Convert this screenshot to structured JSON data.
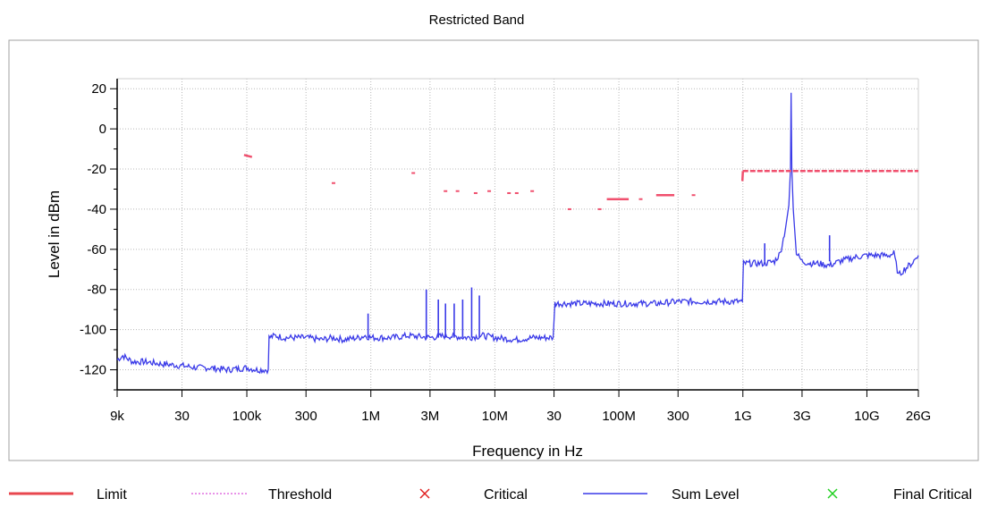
{
  "chart_data": {
    "type": "line",
    "title": "Restricted Band",
    "xlabel": "Frequency in Hz",
    "ylabel": "Level in dBm",
    "x_scale": "log",
    "xlim_hz": [
      9000,
      26000000000
    ],
    "ylim": [
      -130,
      25
    ],
    "y_ticks": [
      20,
      0,
      -20,
      -40,
      -60,
      -80,
      -100,
      -120
    ],
    "x_ticks": [
      {
        "hz": 9000,
        "label": "9k"
      },
      {
        "hz": 30000,
        "label": "30"
      },
      {
        "hz": 100000,
        "label": "100k"
      },
      {
        "hz": 300000,
        "label": "300"
      },
      {
        "hz": 1000000,
        "label": "1M"
      },
      {
        "hz": 3000000,
        "label": "3M"
      },
      {
        "hz": 10000000,
        "label": "10M"
      },
      {
        "hz": 30000000,
        "label": "30"
      },
      {
        "hz": 100000000,
        "label": "100M"
      },
      {
        "hz": 300000000,
        "label": "300"
      },
      {
        "hz": 1000000000,
        "label": "1G"
      },
      {
        "hz": 3000000000,
        "label": "3G"
      },
      {
        "hz": 10000000000,
        "label": "10G"
      },
      {
        "hz": 26000000000,
        "label": "26G"
      }
    ],
    "grid": true,
    "legend_position": "bottom",
    "legend": [
      {
        "name": "Limit",
        "style": "line",
        "color": "#e8474f"
      },
      {
        "name": "Threshold",
        "style": "dotted",
        "color": "#e070e0"
      },
      {
        "name": "Critical",
        "style": "x-marker",
        "color": "#e02020"
      },
      {
        "name": "Sum Level",
        "style": "line",
        "color": "#3a3ae8"
      },
      {
        "name": "Final Critical",
        "style": "x-marker",
        "color": "#20d020"
      }
    ],
    "series": [
      {
        "name": "Sum Level",
        "color": "#3a3ae8",
        "x": [
          9000,
          10000,
          12000,
          15000,
          20000,
          30000,
          40000,
          50000,
          70000,
          100000,
          120000,
          149000,
          151000,
          170000,
          200000,
          300000,
          400000,
          500000,
          600000,
          800000,
          900000,
          1000000,
          1500000,
          2000000,
          3000000,
          4000000,
          6000000,
          8000000,
          10000000,
          15000000,
          20000000,
          29500000,
          30500000,
          40000000,
          60000000,
          100000000,
          200000000,
          300000000,
          500000000,
          700000000,
          990000000,
          1010000000,
          1200000000,
          1500000000,
          1800000000,
          2000000000,
          2200000000,
          2350000000,
          2420000000,
          2450000000,
          2480000000,
          2550000000,
          2700000000,
          3000000000,
          3500000000,
          4000000000,
          5000000000,
          6000000000,
          8000000000,
          10000000000,
          12000000000,
          15000000000,
          16500000000,
          18000000000,
          20000000000,
          23000000000,
          26000000000
        ],
        "values": [
          -115,
          -113,
          -116,
          -116,
          -117,
          -118,
          -119,
          -119,
          -120,
          -119,
          -120,
          -120,
          -104,
          -103,
          -104,
          -104,
          -105,
          -104,
          -105,
          -104,
          -103,
          -104,
          -104,
          -103,
          -104,
          -103,
          -104,
          -103,
          -104,
          -105,
          -104,
          -104,
          -87,
          -87,
          -87,
          -87,
          -87,
          -86,
          -86,
          -86,
          -86,
          -67,
          -67,
          -67,
          -66,
          -62,
          -50,
          -38,
          -20,
          18,
          -20,
          -40,
          -62,
          -66,
          -67,
          -67,
          -68,
          -66,
          -64,
          -63,
          -63,
          -63,
          -62,
          -73,
          -70,
          -67,
          -63
        ]
      },
      {
        "name": "Sum Level spikes",
        "color": "#3a3ae8",
        "x": [
          950000,
          2800000,
          3500000,
          4000000,
          4700000,
          5500000,
          6500000,
          7500000,
          1500000000,
          5000000000
        ],
        "values": [
          -92,
          -80,
          -85,
          -87,
          -87,
          -85,
          -79,
          -83,
          -57,
          -53
        ]
      },
      {
        "name": "Limit",
        "color": "#f0506e",
        "segments": [
          {
            "x": [
              95000,
              110000
            ],
            "values": [
              -13,
              -14
            ]
          },
          {
            "x": [
              80000000,
              120000000
            ],
            "values": [
              -35,
              -35
            ]
          },
          {
            "x": [
              200000000,
              280000000
            ],
            "values": [
              -33,
              -33
            ]
          },
          {
            "x": [
              990000000,
              1000000000
            ],
            "values": [
              -26,
              -21
            ]
          },
          {
            "x": [
              1000000000,
              26000000000
            ],
            "values": [
              -21,
              -21
            ]
          }
        ],
        "points": [
          {
            "x": 500000,
            "value": -27
          },
          {
            "x": 2200000,
            "value": -22
          },
          {
            "x": 4000000,
            "value": -31
          },
          {
            "x": 5000000,
            "value": -31
          },
          {
            "x": 7000000,
            "value": -32
          },
          {
            "x": 9000000,
            "value": -31
          },
          {
            "x": 13000000,
            "value": -32
          },
          {
            "x": 15000000,
            "value": -32
          },
          {
            "x": 20000000,
            "value": -31
          },
          {
            "x": 40000000,
            "value": -40
          },
          {
            "x": 70000000,
            "value": -40
          },
          {
            "x": 150000000,
            "value": -35
          },
          {
            "x": 400000000,
            "value": -33
          }
        ]
      }
    ]
  }
}
